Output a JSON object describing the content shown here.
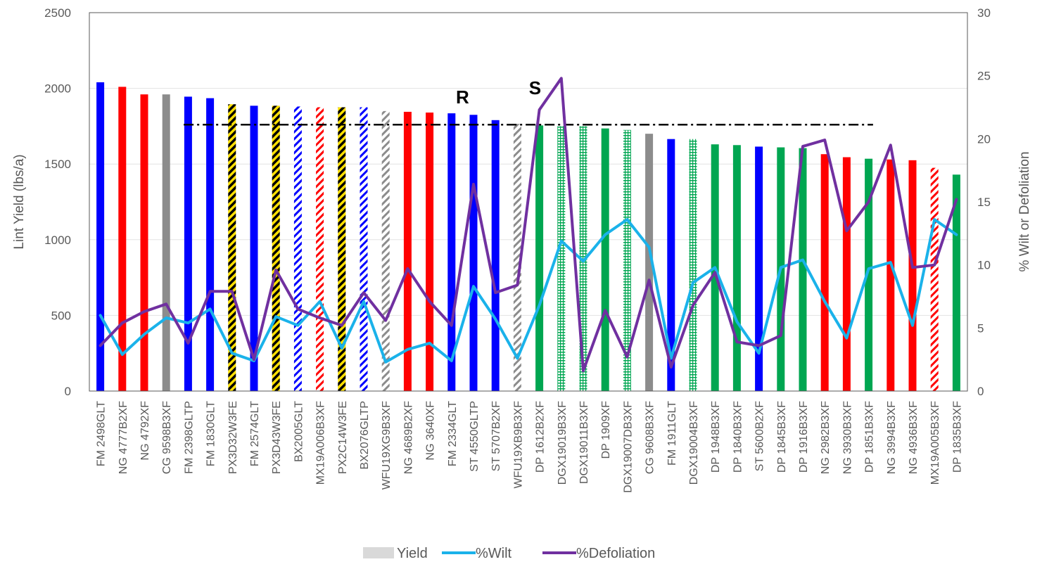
{
  "chart_data": {
    "type": "bar",
    "ylabel": "Lint Yield (lbs/a)",
    "y2label": "% Wilt or Defoliation",
    "ylim": [
      0,
      2500
    ],
    "y2lim": [
      0,
      30
    ],
    "yticks": [
      "0",
      "500",
      "1000",
      "1500",
      "2000",
      "2500"
    ],
    "y2ticks": [
      "0",
      "5",
      "10",
      "15",
      "20",
      "25",
      "30"
    ],
    "grid": true,
    "legend_position": "bottom",
    "categories": [
      "FM 2498GLT",
      "NG 4777B2XF",
      "NG 4792XF",
      "CG 9598B3XF",
      "FM 2398GLTP",
      "FM 1830GLT",
      "PX3D32W3FE",
      "FM 2574GLT",
      "PX3D43W3FE",
      "BX2005GLT",
      "MX19A006B3XF",
      "PX2C14W3FE",
      "BX2076GLTP",
      "WFU19XG9B3XF",
      "NG 4689B2XF",
      "NG 3640XF",
      "FM 2334GLT",
      "ST 4550GLTP",
      "ST 5707B2XF",
      "WFU19XB9B3XF",
      "DP 1612B2XF",
      "DGX19019B3XF",
      "DGX19011B3XF",
      "DP 1909XF",
      "DGX19007DB3XF",
      "CG 9608B3XF",
      "FM 1911GLT",
      "DGX19004B3XF",
      "DP 1948B3XF",
      "DP 1840B3XF",
      "ST 5600B2XF",
      "DP 1845B3XF",
      "DP 1916B3XF",
      "NG 2982B3XF",
      "NG 3930B3XF",
      "DP 1851B3XF",
      "NG 3994B3XF",
      "NG 4936B3XF",
      "MX19A005B3XF",
      "DP 1835B3XF"
    ],
    "series": [
      {
        "name": "Yield",
        "axis": "left",
        "type": "bar",
        "values": [
          2040,
          2010,
          1960,
          1960,
          1945,
          1935,
          1895,
          1885,
          1885,
          1880,
          1875,
          1875,
          1875,
          1850,
          1845,
          1840,
          1835,
          1825,
          1790,
          1765,
          1755,
          1750,
          1750,
          1735,
          1725,
          1700,
          1665,
          1665,
          1630,
          1625,
          1615,
          1610,
          1605,
          1565,
          1545,
          1535,
          1530,
          1525,
          1475,
          1430
        ]
      },
      {
        "name": "%Wilt",
        "axis": "right",
        "type": "line",
        "values": [
          6.0,
          2.9,
          4.5,
          5.8,
          5.4,
          6.5,
          3.0,
          2.4,
          5.9,
          5.2,
          7.1,
          3.4,
          7.1,
          2.3,
          3.3,
          3.8,
          2.4,
          8.3,
          5.7,
          2.6,
          6.8,
          11.9,
          10.3,
          12.4,
          13.6,
          11.4,
          2.6,
          8.6,
          9.8,
          5.5,
          3.0,
          9.8,
          10.4,
          7.1,
          4.2,
          9.7,
          10.2,
          5.2,
          13.6,
          12.4
        ]
      },
      {
        "name": "%Defoliation",
        "axis": "right",
        "type": "line",
        "values": [
          3.6,
          5.4,
          6.3,
          6.9,
          3.8,
          7.9,
          7.9,
          2.5,
          9.6,
          6.5,
          5.8,
          5.2,
          7.8,
          5.6,
          9.7,
          7.1,
          5.2,
          16.4,
          7.8,
          8.4,
          22.3,
          24.8,
          1.6,
          6.4,
          2.7,
          8.8,
          1.9,
          6.8,
          9.4,
          3.9,
          3.6,
          4.4,
          19.4,
          19.9,
          12.7,
          15.0,
          19.5,
          9.8,
          10.0,
          15.2
        ]
      }
    ],
    "bar_styles": [
      "solid-blue",
      "solid-red",
      "solid-red",
      "solid-gray",
      "solid-blue",
      "solid-blue",
      "hatch-yellow",
      "solid-blue",
      "hatch-yellow",
      "hatch-blue",
      "hatch-red",
      "hatch-yellow",
      "hatch-blue",
      "hatch-gray",
      "solid-red",
      "solid-red",
      "solid-blue",
      "solid-blue",
      "solid-blue",
      "hatch-gray",
      "solid-green",
      "hgrid-green",
      "hgrid-green",
      "solid-green",
      "hgrid-green",
      "solid-gray",
      "solid-blue",
      "hgrid-green",
      "solid-green",
      "solid-green",
      "solid-blue",
      "solid-green",
      "solid-green",
      "solid-red",
      "solid-red",
      "solid-green",
      "solid-red",
      "solid-red",
      "hatch-red",
      "solid-green"
    ],
    "reference_line": {
      "value": 1760,
      "from_index": 4,
      "to_index": 35,
      "style": "dash-dot"
    },
    "annotations": [
      {
        "text": "R",
        "index": 16.5,
        "value": 1900
      },
      {
        "text": "S",
        "index": 19.8,
        "value": 1960
      }
    ],
    "legend": [
      {
        "name": "Yield",
        "swatch": "bar"
      },
      {
        "name": "%Wilt",
        "swatch": "line"
      },
      {
        "name": "%Defoliation",
        "swatch": "line"
      }
    ],
    "colors": {
      "blue": "#0000ff",
      "red": "#ff0000",
      "gray": "#8c8c8c",
      "green": "#00a651",
      "yellow": "#ffe000",
      "black": "#000000",
      "wilt": "#1ab2ea",
      "defoliation": "#7030a0",
      "legend_yield": "#d9d9d9",
      "axis": "#595959",
      "grid": "#e3e3e3"
    }
  }
}
